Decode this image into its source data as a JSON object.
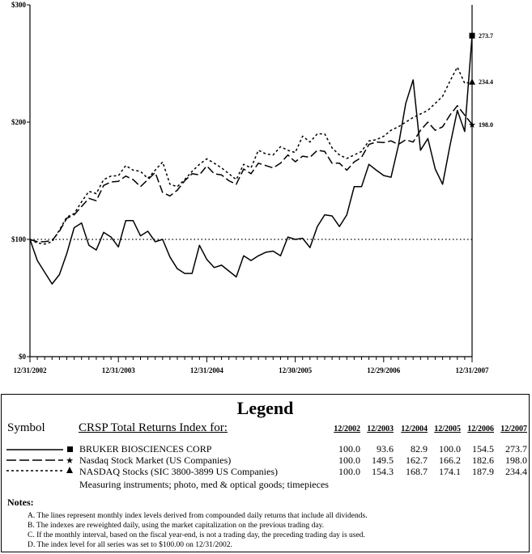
{
  "chart_data": {
    "type": "line",
    "x": [
      "12/31/2002",
      "1/31/2003",
      "2/28/2003",
      "3/31/2003",
      "4/30/2003",
      "5/31/2003",
      "6/30/2003",
      "7/31/2003",
      "8/31/2003",
      "9/30/2003",
      "10/31/2003",
      "11/30/2003",
      "12/31/2003",
      "1/31/2004",
      "2/29/2004",
      "3/31/2004",
      "4/30/2004",
      "5/31/2004",
      "6/30/2004",
      "7/31/2004",
      "8/31/2004",
      "9/30/2004",
      "10/31/2004",
      "11/30/2004",
      "12/31/2004",
      "1/31/2005",
      "2/28/2005",
      "3/31/2005",
      "4/30/2005",
      "5/31/2005",
      "6/30/2005",
      "7/31/2005",
      "8/31/2005",
      "9/30/2005",
      "10/31/2005",
      "11/30/2005",
      "12/30/2005",
      "1/31/2006",
      "2/28/2006",
      "3/31/2006",
      "4/30/2006",
      "5/31/2006",
      "6/30/2006",
      "7/31/2006",
      "8/31/2006",
      "9/30/2006",
      "10/31/2006",
      "11/30/2006",
      "12/29/2006",
      "1/31/2007",
      "2/28/2007",
      "3/31/2007",
      "4/30/2007",
      "5/31/2007",
      "6/30/2007",
      "7/31/2007",
      "8/31/2007",
      "9/30/2007",
      "10/31/2007",
      "11/30/2007",
      "12/31/2007"
    ],
    "x_tick_labels": [
      "12/31/2002",
      "12/31/2003",
      "12/31/2004",
      "12/30/2005",
      "12/29/2006",
      "12/31/2007"
    ],
    "y_tick_labels": [
      "$0",
      "$100",
      "$200",
      "$300"
    ],
    "ylim": [
      0,
      300
    ],
    "reference_line": 100,
    "grid": false,
    "series": [
      {
        "name": "BRUKER BIOSCIENCES CORP",
        "style": "solid",
        "marker": "square",
        "end_label": "273.7",
        "values": [
          100,
          82,
          72,
          62,
          70,
          88,
          110,
          114,
          95,
          91,
          106,
          102,
          93.6,
          116,
          116,
          103,
          107,
          98,
          100,
          85,
          75,
          71,
          71,
          95,
          82.9,
          76,
          78,
          73,
          68,
          86,
          82,
          86,
          89,
          90,
          86,
          102,
          100.0,
          101,
          93,
          111,
          121,
          120,
          111,
          121,
          145,
          145,
          164,
          159,
          154.5,
          153,
          180,
          216,
          236,
          176,
          186,
          160,
          147,
          180,
          210,
          192,
          273.7
        ]
      },
      {
        "name": "Nasdaq Stock Market (US Companies)",
        "style": "dashed",
        "marker": "star",
        "end_label": "198.0",
        "values": [
          100,
          98,
          98,
          99,
          107,
          118,
          121,
          128,
          135,
          133,
          146,
          149,
          149.5,
          154,
          151,
          145,
          151,
          157,
          140,
          137,
          142,
          150,
          156,
          155,
          162.7,
          156,
          155,
          150,
          147,
          160,
          156,
          165,
          163,
          161,
          165,
          172,
          166.2,
          171,
          170,
          176,
          175,
          165,
          165,
          159,
          166,
          170,
          181,
          183,
          182.6,
          184,
          181,
          185,
          183,
          193,
          200,
          193,
          196,
          206,
          214,
          206,
          198.0
        ]
      },
      {
        "name": "NASDAQ Stocks (SIC 3800-3899 US Companies)",
        "style": "dotted",
        "marker": "triangle",
        "end_label": "234.4",
        "values": [
          100,
          97,
          96,
          98,
          108,
          119,
          122,
          132,
          141,
          139,
          151,
          154,
          154.3,
          163,
          159,
          158,
          152,
          159,
          166,
          147,
          145,
          151,
          158,
          164,
          168.7,
          165,
          161,
          156,
          151,
          164,
          161,
          176,
          173,
          172,
          179,
          176,
          174.1,
          188,
          183,
          190,
          190,
          178,
          172,
          169,
          172,
          175,
          184,
          185,
          187.9,
          193,
          196,
          200,
          204,
          207,
          210,
          216,
          222,
          235,
          247,
          233,
          234.4
        ]
      }
    ]
  },
  "legend": {
    "title": "Legend",
    "symbol_header": "Symbol",
    "index_header": "CRSP Total Returns Index for:",
    "columns": [
      "12/2002",
      "12/2003",
      "12/2004",
      "12/2005",
      "12/2006",
      "12/2007"
    ],
    "rows": [
      {
        "name": "BRUKER BIOSCIENCES CORP",
        "values": [
          "100.0",
          "93.6",
          "82.9",
          "100.0",
          "154.5",
          "273.7"
        ]
      },
      {
        "name": "Nasdaq Stock Market (US Companies)",
        "values": [
          "100.0",
          "149.5",
          "162.7",
          "166.2",
          "182.6",
          "198.0"
        ]
      },
      {
        "name": "NASDAQ Stocks (SIC 3800-3899 US Companies)",
        "values": [
          "100.0",
          "154.3",
          "168.7",
          "174.1",
          "187.9",
          "234.4"
        ]
      }
    ],
    "description": "Measuring instruments; photo, med & optical goods; timepieces"
  },
  "notes": {
    "title": "Notes:",
    "items": [
      "A. The lines represent monthly index levels derived from compounded daily returns that include all dividends.",
      "B. The indexes are reweighted daily, using the market capitalization on the previous trading day.",
      "C. If the monthly interval, based on the fiscal year-end, is not a trading day, the preceding trading day is used.",
      "D. The index level for all series was set to $100.00 on 12/31/2002."
    ]
  }
}
